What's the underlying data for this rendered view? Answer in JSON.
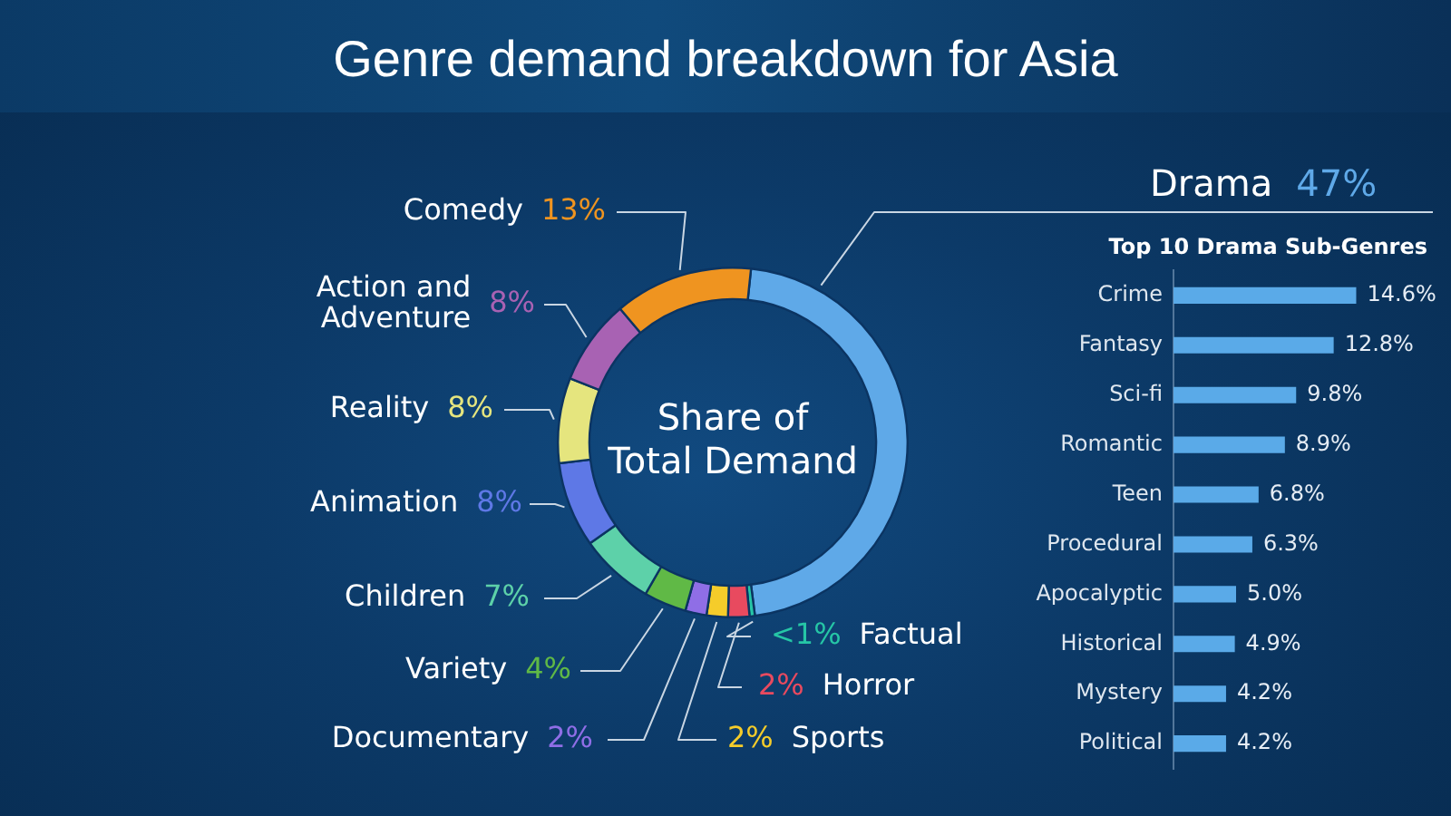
{
  "chart_data": [
    {
      "type": "donut",
      "title": "Genre demand breakdown for Asia",
      "annotations": [
        "Share of Total Demand"
      ],
      "categories": [
        "Drama",
        "Factual",
        "Horror",
        "Sports",
        "Documentary",
        "Variety",
        "Children",
        "Animation",
        "Reality",
        "Action and Adventure",
        "Comedy"
      ],
      "values": [
        47,
        0.5,
        2,
        2,
        2,
        4,
        7,
        8,
        8,
        8,
        13
      ],
      "value_labels": [
        "47%",
        "<1%",
        "2%",
        "2%",
        "2%",
        "4%",
        "7%",
        "8%",
        "8%",
        "8%",
        "13%"
      ],
      "colors": [
        "#5fa9e8",
        "#26c6a6",
        "#e84a5f",
        "#f5cc2a",
        "#8f6ee6",
        "#60b946",
        "#5dd1a9",
        "#5e78e6",
        "#e5e57e",
        "#a862b3",
        "#ef9420"
      ]
    },
    {
      "type": "bar",
      "orientation": "horizontal",
      "title": "Top 10 Drama Sub-Genres",
      "categories": [
        "Crime",
        "Fantasy",
        "Sci-fi",
        "Romantic",
        "Teen",
        "Procedural",
        "Apocalyptic",
        "Historical",
        "Mystery",
        "Political"
      ],
      "values": [
        14.6,
        12.8,
        9.8,
        8.9,
        6.8,
        6.3,
        5.0,
        4.9,
        4.2,
        4.2
      ],
      "value_labels": [
        "14.6%",
        "12.8%",
        "9.8%",
        "8.9%",
        "6.8%",
        "6.3%",
        "5.0%",
        "4.9%",
        "4.2%",
        "4.2%"
      ],
      "color": "#5aaae8",
      "tick_labels": "y"
    }
  ]
}
